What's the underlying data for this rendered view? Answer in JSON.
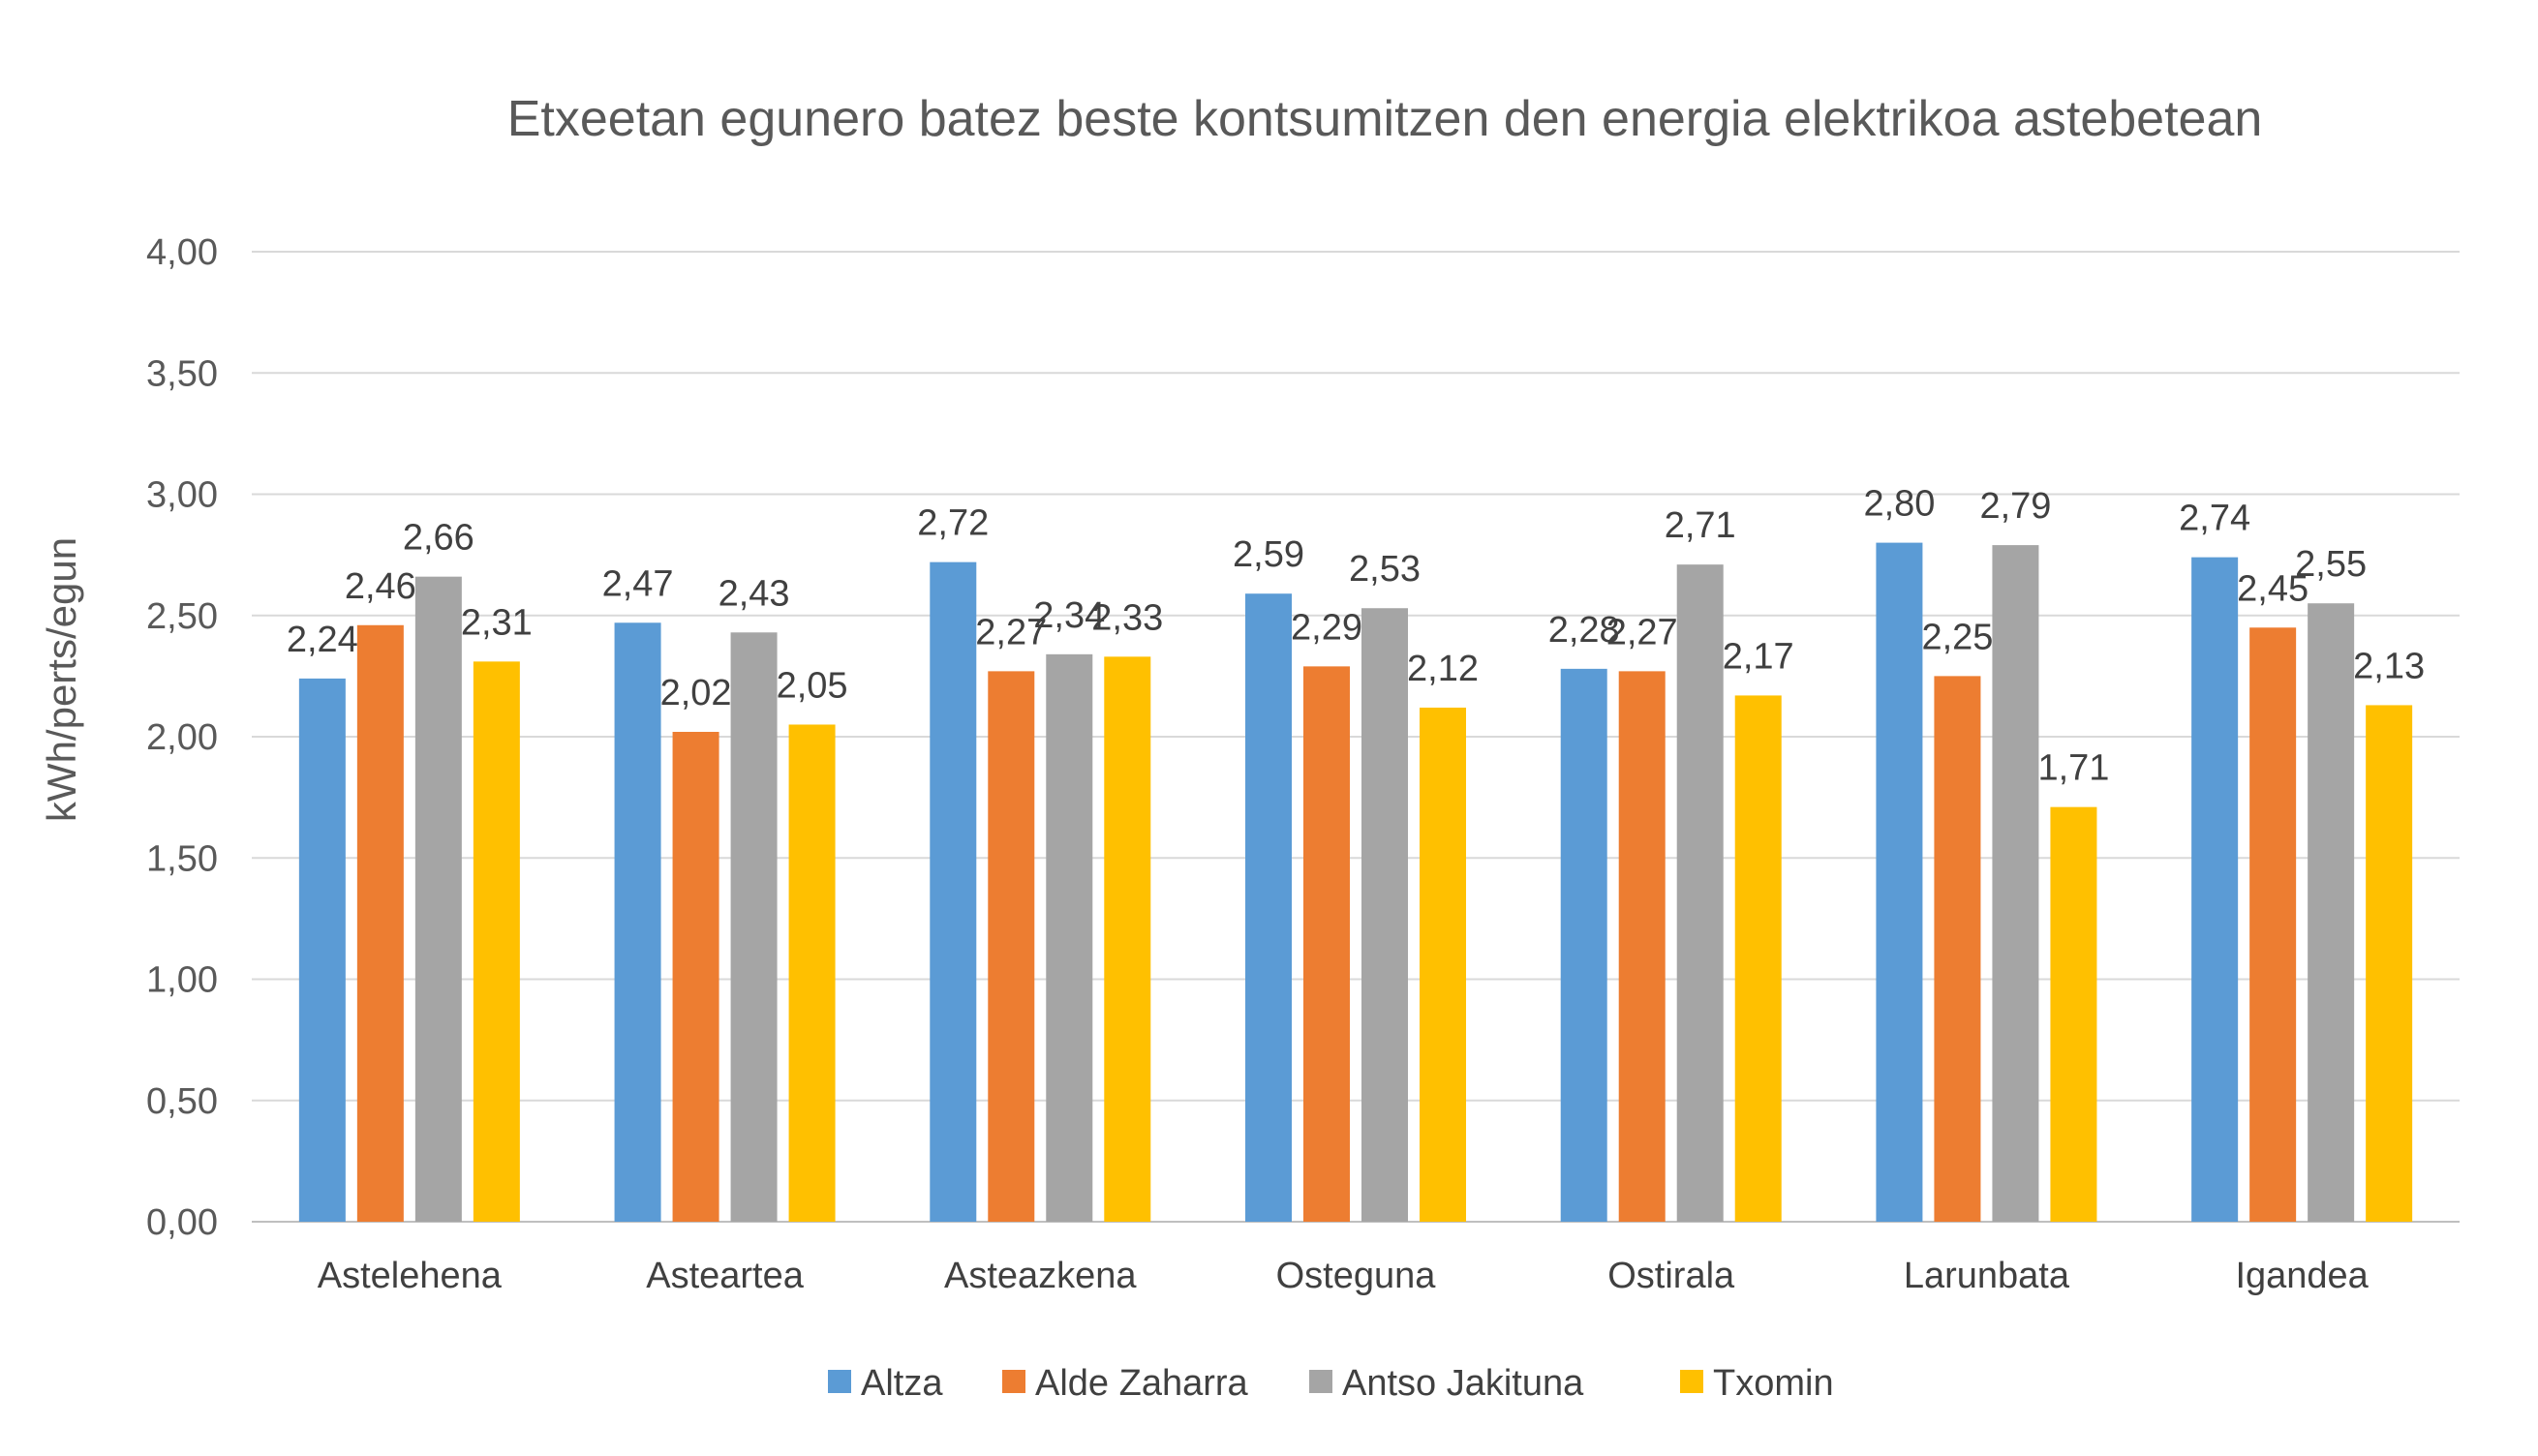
{
  "chart_data": {
    "type": "bar",
    "title": "Etxeetan egunero batez beste kontsumitzen den energia elektrikoa astebetean",
    "xlabel": "",
    "ylabel": "kWh/perts/egun",
    "ylim": [
      0,
      4
    ],
    "y_ticks": [
      "0,00",
      "0,50",
      "1,00",
      "1,50",
      "2,00",
      "2,50",
      "3,00",
      "3,50",
      "4,00"
    ],
    "grid": true,
    "legend_position": "bottom",
    "categories": [
      "Astelehena",
      "Asteartea",
      "Asteazkena",
      "Osteguna",
      "Ostirala",
      "Larunbata",
      "Igandea"
    ],
    "series": [
      {
        "name": "Altza",
        "color": "#5B9BD5",
        "values": [
          2.24,
          2.47,
          2.72,
          2.59,
          2.28,
          2.8,
          2.74
        ],
        "labels": [
          "2,24",
          "2,47",
          "2,72",
          "2,59",
          "2,28",
          "2,80",
          "2,74"
        ]
      },
      {
        "name": "Alde Zaharra",
        "color": "#ED7D31",
        "values": [
          2.46,
          2.02,
          2.27,
          2.29,
          2.27,
          2.25,
          2.45
        ],
        "labels": [
          "2,46",
          "2,02",
          "2,27",
          "2,29",
          "2,27",
          "2,25",
          "2,45"
        ]
      },
      {
        "name": "Antso Jakituna",
        "color": "#A5A5A5",
        "values": [
          2.66,
          2.43,
          2.34,
          2.53,
          2.71,
          2.79,
          2.55
        ],
        "labels": [
          "2,66",
          "2,43",
          "2,34",
          "2,53",
          "2,71",
          "2,79",
          "2,55"
        ]
      },
      {
        "name": "Txomin",
        "color": "#FFC000",
        "values": [
          2.31,
          2.05,
          2.33,
          2.12,
          2.17,
          1.71,
          2.13
        ],
        "labels": [
          "2,31",
          "2,05",
          "2,33",
          "2,12",
          "2,17",
          "1,71",
          "2,13"
        ]
      }
    ]
  }
}
